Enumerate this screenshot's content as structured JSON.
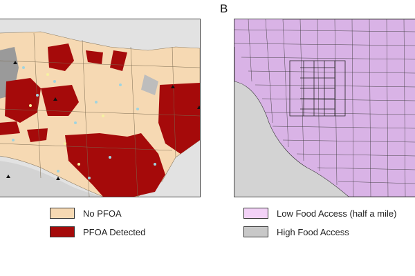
{
  "panels": [
    {
      "label": "",
      "legend": [
        {
          "label": "No PFOA",
          "color": "#f6d9b3"
        },
        {
          "label": "PFOA Detected",
          "color": "#a50a0a"
        }
      ]
    },
    {
      "label": "B",
      "legend": [
        {
          "label": "Low Food Access (half a mile)",
          "color": "#f3d2f7"
        },
        {
          "label": "High Food Access",
          "color": "#c8c8c8"
        }
      ]
    }
  ],
  "colors": {
    "ocean": "#d3d3d3",
    "land_outside": "#e2e2e2",
    "no_pfoa": "#f6d9b3",
    "pfoa": "#a50a0a",
    "low_food": "#d9b3e6",
    "tract_line": "#3a3a3a"
  }
}
